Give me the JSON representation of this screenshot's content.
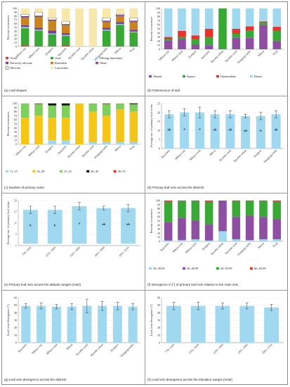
{
  "chart_data": [
    {
      "id": "a",
      "type": "bar",
      "caption": "(a) Leaf shapes",
      "ylabel": "Percent occurrence",
      "ylim": [
        0,
        100
      ],
      "categories": [
        "Mbeya city",
        "Mbeya rural",
        "Rungwe",
        "Busokelo",
        "Njombe rural",
        "Njombe urban",
        "Wanging'ombe",
        "Mbozi",
        "Total"
      ],
      "series": [
        {
          "name": "Ovate",
          "color": "#e8322b",
          "values": [
            3,
            2,
            2,
            3,
            0,
            0,
            2,
            2,
            2
          ]
        },
        {
          "name": "Oval",
          "color": "#39a935",
          "values": [
            45,
            40,
            30,
            25,
            0,
            0,
            40,
            55,
            35
          ]
        },
        {
          "name": "Oblong-lanceolate",
          "color": "#9fd8ef",
          "values": [
            3,
            2,
            2,
            2,
            0,
            0,
            2,
            2,
            2
          ]
        },
        {
          "name": "Narrowly obovate",
          "color": "#7b3d96",
          "values": [
            5,
            5,
            8,
            5,
            0,
            0,
            5,
            5,
            5
          ]
        },
        {
          "name": "Roundish",
          "color": "#c9841e",
          "values": [
            20,
            28,
            25,
            20,
            0,
            0,
            15,
            15,
            20
          ]
        },
        {
          "name": "Other",
          "color": "#8e4fa3",
          "values": [
            3,
            3,
            3,
            3,
            0,
            0,
            3,
            3,
            3
          ]
        },
        {
          "name": "Obovate",
          "color": "#ffffff",
          "values": [
            6,
            10,
            5,
            8,
            0,
            0,
            8,
            3,
            8
          ]
        },
        {
          "name": "Lanceolate",
          "color": "#f8e7ac",
          "values": [
            15,
            10,
            25,
            34,
            100,
            100,
            25,
            15,
            25
          ]
        }
      ]
    },
    {
      "id": "b",
      "type": "bar",
      "caption": "(b) Pubescence of leaf",
      "ylabel": "Percent occurrence",
      "ylim": [
        0,
        100
      ],
      "categories": [
        "Mbeya city",
        "Mbeya rural",
        "Rungwe",
        "Busokelo",
        "Njombe urban",
        "Njombe rural",
        "Wanging'ombe",
        "Mbozi",
        "Total"
      ],
      "series": [
        {
          "name": "Absent",
          "color": "#8e4fa3",
          "values": [
            22,
            25,
            12,
            10,
            0,
            28,
            28,
            60,
            20
          ]
        },
        {
          "name": "Sparse",
          "color": "#39a935",
          "values": [
            3,
            5,
            12,
            20,
            100,
            10,
            18,
            5,
            25
          ]
        },
        {
          "name": "Intermediate",
          "color": "#e8322b",
          "values": [
            5,
            15,
            10,
            20,
            0,
            12,
            10,
            3,
            10
          ]
        },
        {
          "name": "Dense",
          "color": "#9fd8ef",
          "values": [
            70,
            55,
            66,
            50,
            0,
            50,
            44,
            32,
            45
          ]
        }
      ]
    },
    {
      "id": "c",
      "type": "bar",
      "caption": "(c) Number of primary veins",
      "ylabel": "Percent occurrence",
      "ylim": [
        0,
        100
      ],
      "categories": [
        "Mbeya city",
        "Mbeya rural",
        "Rungwe",
        "Busokelo",
        "Njombe urban",
        "Njombe rural",
        "Wanging'ombe",
        "Mbozi",
        "Total"
      ],
      "series": [
        {
          "name": "11–15",
          "color": "#9fd8ef",
          "values": [
            0,
            0,
            10,
            10,
            0,
            5,
            5,
            5,
            5
          ]
        },
        {
          "name": "16–20",
          "color": "#f5c518",
          "values": [
            65,
            70,
            55,
            55,
            100,
            75,
            65,
            80,
            75
          ]
        },
        {
          "name": "21–25",
          "color": "#7fcf5f",
          "values": [
            35,
            28,
            30,
            30,
            0,
            20,
            28,
            15,
            18
          ]
        },
        {
          "name": "26–30",
          "color": "#111111",
          "values": [
            0,
            0,
            5,
            5,
            0,
            0,
            0,
            0,
            2
          ]
        },
        {
          "name": "30–33",
          "color": "#e8322b",
          "values": [
            0,
            2,
            0,
            0,
            0,
            0,
            2,
            0,
            0
          ]
        }
      ]
    },
    {
      "id": "d",
      "type": "bar",
      "caption": "(d) Primary leaf vein across the districts",
      "ylabel": "Average no. of primary leaf veins",
      "ylim": [
        0,
        25
      ],
      "yticks": [
        0,
        5,
        10,
        15,
        20,
        25
      ],
      "categories": [
        "Busokelo",
        "Mbeya city",
        "Mbeya rural",
        "Mbozi",
        "Njombe rural",
        "Njombe urban",
        "Rungwe",
        "Wanging'ombe"
      ],
      "values": [
        19,
        20,
        20,
        19,
        19,
        18,
        18,
        19
      ],
      "errors": [
        2,
        2,
        3,
        2,
        2,
        1,
        2,
        2
      ],
      "letters": [
        "ab",
        "a",
        "a",
        "ab",
        "ab",
        "ab",
        "b",
        "ab"
      ],
      "color": "#9fd8ef"
    },
    {
      "id": "e",
      "type": "bar",
      "caption": "(e) Primary leaf vein across the altitude ranges (masl)",
      "ylabel": "Average no. of primary leaf veins",
      "ylim": [
        -1,
        23
      ],
      "yticks": [
        -1,
        5,
        11,
        17,
        23
      ],
      "categories": [
        "778–1200",
        "1201–1600",
        "1601–1900",
        "1901–1900",
        "1901–2136"
      ],
      "values": [
        18,
        18,
        20,
        19,
        19
      ],
      "errors": [
        2,
        2,
        2,
        1,
        2
      ],
      "letters": [
        "b",
        "b",
        "a",
        "ab",
        "ab"
      ],
      "color": "#9fd8ef"
    },
    {
      "id": "f",
      "type": "bar",
      "caption": "(f) Divergence in [°] of primary leaf vein relative to the main vein",
      "ylabel": "Percent occurrence",
      "ylim": [
        0,
        100
      ],
      "categories": [
        "Busokelo",
        "Mbeya city",
        "Mbeya rural",
        "Rungwe",
        "Njombe urban",
        "Njombe rural",
        "Wanging'ombe",
        "Mbozi",
        "Total"
      ],
      "series": [
        {
          "name": "30–39.99",
          "color": "#9fd8ef",
          "values": [
            2,
            3,
            5,
            2,
            25,
            5,
            3,
            5,
            5
          ]
        },
        {
          "name": "40–49.99",
          "color": "#8e4fa3",
          "values": [
            45,
            55,
            45,
            40,
            75,
            55,
            60,
            55,
            50
          ]
        },
        {
          "name": "50–59.99",
          "color": "#39a935",
          "values": [
            50,
            40,
            48,
            55,
            0,
            38,
            35,
            38,
            42
          ]
        },
        {
          "name": "60–69.99",
          "color": "#e8322b",
          "values": [
            3,
            2,
            2,
            3,
            0,
            2,
            2,
            2,
            3
          ]
        }
      ]
    },
    {
      "id": "g",
      "type": "bar",
      "caption": "(g) Leaf vein divergence across the districts",
      "ylabel": "Leaf vein divergence (°)",
      "ylim": [
        0,
        60
      ],
      "yticks": [
        0,
        10,
        20,
        30,
        40,
        50,
        60
      ],
      "categories": [
        "Busokelo",
        "Mbeya city",
        "Mbeya rural",
        "Mbozi",
        "Njombe rural",
        "Njombe urban",
        "Rungwe",
        "Wanging'ombe"
      ],
      "values": [
        49,
        49,
        48,
        48,
        49,
        49,
        49,
        48
      ],
      "errors": [
        3,
        4,
        3,
        4,
        9,
        6,
        5,
        4
      ],
      "color": "#9fd8ef"
    },
    {
      "id": "h",
      "type": "bar",
      "caption": "(h) Leaf vein divergence across the elevation ranges (masl)",
      "ylabel": "Leaf vein divergence (°)",
      "ylim": [
        0,
        60
      ],
      "yticks": [
        0,
        10,
        20,
        30,
        40,
        50,
        60
      ],
      "categories": [
        "778–1200",
        "1201–1600",
        "1601–1900",
        "1901–1900",
        "1901–2136"
      ],
      "values": [
        49,
        49,
        49,
        49,
        47
      ],
      "errors": [
        5,
        5,
        4,
        4,
        4
      ],
      "color": "#9fd8ef"
    }
  ]
}
